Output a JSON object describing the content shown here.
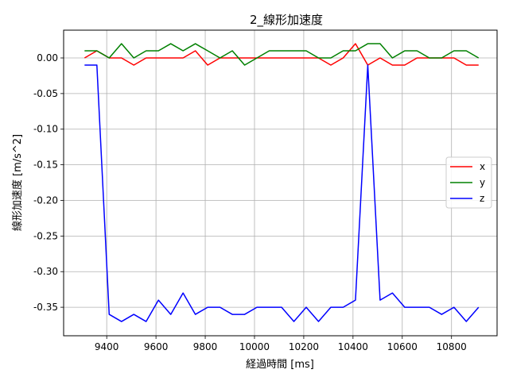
{
  "chart_data": {
    "type": "line",
    "title": "2_線形加速度",
    "xlabel": "経過時間 [ms]",
    "ylabel": "線形加速度 [m/s^2]",
    "xlim": [
      9225,
      10985
    ],
    "ylim": [
      -0.39,
      0.039
    ],
    "x_ticks": [
      9400,
      9600,
      9800,
      10000,
      10200,
      10400,
      10600,
      10800
    ],
    "y_ticks": [
      0.0,
      -0.05,
      -0.1,
      -0.15,
      -0.2,
      -0.25,
      -0.3,
      -0.35
    ],
    "y_tick_labels": [
      "0.00",
      "-0.05",
      "-0.10",
      "-0.15",
      "-0.20",
      "-0.25",
      "-0.30",
      "-0.35"
    ],
    "grid": true,
    "legend_position": "right",
    "x": [
      9310,
      9360,
      9410,
      9460,
      9510,
      9560,
      9610,
      9660,
      9710,
      9760,
      9810,
      9860,
      9910,
      9960,
      10010,
      10060,
      10110,
      10160,
      10210,
      10260,
      10310,
      10360,
      10410,
      10460,
      10510,
      10560,
      10610,
      10660,
      10710,
      10760,
      10810,
      10860,
      10910
    ],
    "series": [
      {
        "name": "x",
        "color": "#ff0000",
        "values": [
          0.0,
          0.01,
          0.0,
          0.0,
          -0.01,
          0.0,
          0.0,
          0.0,
          0.0,
          0.01,
          -0.01,
          0.0,
          0.0,
          0.0,
          0.0,
          0.0,
          0.0,
          0.0,
          0.0,
          0.0,
          -0.01,
          0.0,
          0.02,
          -0.01,
          0.0,
          -0.01,
          -0.01,
          0.0,
          0.0,
          0.0,
          0.0,
          -0.01,
          -0.01
        ]
      },
      {
        "name": "y",
        "color": "#008000",
        "values": [
          0.01,
          0.01,
          0.0,
          0.02,
          0.0,
          0.01,
          0.01,
          0.02,
          0.01,
          0.02,
          0.01,
          0.0,
          0.01,
          -0.01,
          0.0,
          0.01,
          0.01,
          0.01,
          0.01,
          0.0,
          0.0,
          0.01,
          0.01,
          0.02,
          0.02,
          0.0,
          0.01,
          0.01,
          0.0,
          0.0,
          0.01,
          0.01,
          0.0
        ]
      },
      {
        "name": "z",
        "color": "#0000ff",
        "x": [
          9310,
          9360,
          9410,
          9460,
          9510,
          9560,
          9610,
          9660,
          9710,
          9760,
          9810,
          9860,
          9910,
          9960,
          10010,
          10060,
          10110,
          10160,
          10210,
          10260,
          10310,
          10360,
          10410,
          10460,
          10510,
          10560,
          10610,
          10660,
          10710,
          10760,
          10810,
          10860,
          10910
        ],
        "values": [
          -0.01,
          -0.01,
          -0.36,
          -0.37,
          -0.36,
          -0.37,
          -0.34,
          -0.36,
          -0.33,
          -0.36,
          -0.35,
          -0.35,
          -0.36,
          -0.36,
          -0.35,
          -0.35,
          -0.35,
          -0.37,
          -0.35,
          -0.37,
          -0.35,
          -0.35,
          -0.34,
          -0.01,
          -0.34,
          -0.33,
          -0.35,
          -0.35,
          -0.35,
          -0.36,
          -0.35,
          -0.37,
          -0.35
        ]
      }
    ]
  }
}
